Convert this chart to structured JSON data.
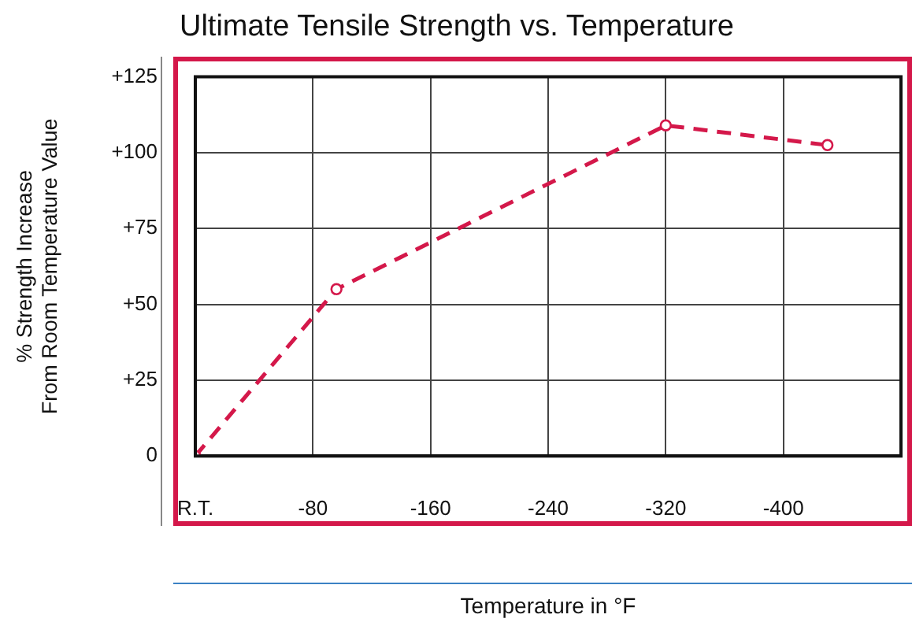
{
  "chart_data": {
    "type": "line",
    "title": "Ultimate Tensile Strength vs. Temperature",
    "xlabel": "Temperature in °F",
    "ylabel": "% Strength Increase\nFrom Room Temperature Value",
    "x": [
      0,
      -96,
      -320,
      -430
    ],
    "series": [
      {
        "color": "#d4184a",
        "values": [
          0,
          55,
          109,
          102.5
        ]
      }
    ],
    "xlim": [
      0,
      -480
    ],
    "xticks": [
      {
        "value": 0,
        "label": "R.T."
      },
      -80,
      -160,
      -240,
      -320,
      -400
    ],
    "ylim": [
      0,
      125
    ],
    "yticks": [
      0,
      {
        "value": 25,
        "label": "+25"
      },
      {
        "value": 50,
        "label": "+50"
      },
      {
        "value": 75,
        "label": "+75"
      },
      {
        "value": 100,
        "label": "+100"
      },
      {
        "value": 125,
        "label": "+125"
      }
    ],
    "grid": true,
    "legend": false,
    "marker": "circle",
    "line_style": "dashed"
  }
}
